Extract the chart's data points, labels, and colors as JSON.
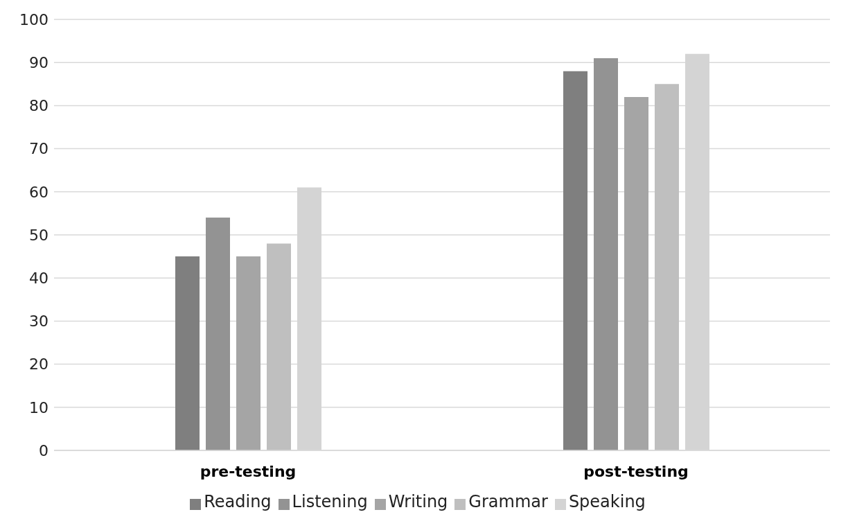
{
  "chart_data": {
    "type": "bar",
    "categories": [
      "pre-testing",
      "post-testing"
    ],
    "series": [
      {
        "name": "Reading",
        "color": "#7f7f7f",
        "values": [
          45,
          88
        ]
      },
      {
        "name": "Listening",
        "color": "#939393",
        "values": [
          54,
          91
        ]
      },
      {
        "name": "Writing",
        "color": "#a5a5a5",
        "values": [
          45,
          82
        ]
      },
      {
        "name": "Grammar",
        "color": "#bfbfbf",
        "values": [
          48,
          85
        ]
      },
      {
        "name": "Speaking",
        "color": "#d4d4d4",
        "values": [
          61,
          92
        ]
      }
    ],
    "ylim": [
      0,
      100
    ],
    "yticks": [
      0,
      10,
      20,
      30,
      40,
      50,
      60,
      70,
      80,
      90,
      100
    ],
    "grid": "y",
    "legend": "bottom"
  }
}
